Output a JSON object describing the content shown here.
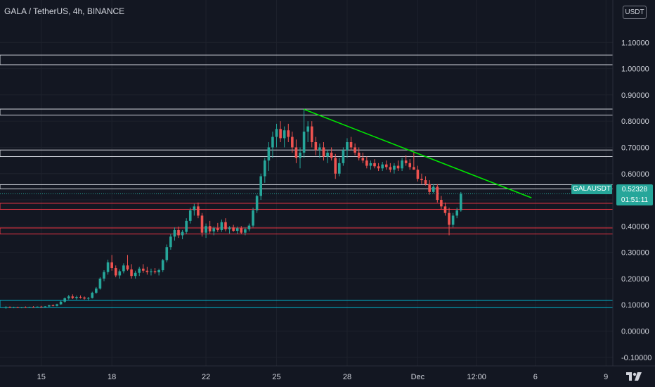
{
  "header": {
    "title": "GALA / TetherUS, 4h, BINANCE"
  },
  "axis_currency_button": "USDT",
  "last_price": {
    "symbol": "GALAUSDT",
    "price": "0.52328",
    "countdown": "01:51:11",
    "value": 0.52328
  },
  "colors": {
    "background": "#131722",
    "up": "#26a69a",
    "down": "#ef5350",
    "trendline": "#00e600",
    "white_zone": "#d1d4dc",
    "red_zone": "#f23645",
    "cyan_zone": "#00bcd4",
    "axis_text": "#d1d4dc"
  },
  "chart_data": {
    "type": "candlestick",
    "title": "GALA / TetherUS, 4h, BINANCE",
    "ylim": [
      -0.13,
      1.2
    ],
    "y_ticks": [
      "1.10000",
      "1.00000",
      "0.90000",
      "0.80000",
      "0.70000",
      "0.60000",
      "0.50000",
      "0.40000",
      "0.30000",
      "0.20000",
      "0.10000",
      "0.00000",
      "-0.10000"
    ],
    "y_tick_values": [
      1.1,
      1.0,
      0.9,
      0.8,
      0.7,
      0.6,
      0.5,
      0.4,
      0.3,
      0.2,
      0.1,
      0.0,
      -0.1
    ],
    "x_ticks": [
      "15",
      "18",
      "22",
      "25",
      "28",
      "Dec",
      "12:00",
      "6",
      "9"
    ],
    "x_tick_index": [
      9,
      27,
      51,
      69,
      87,
      105,
      120,
      135,
      153
    ],
    "horizontal_zones": [
      {
        "color": "white",
        "top": 1.052,
        "bottom": 1.015
      },
      {
        "color": "white",
        "top": 0.846,
        "bottom": 0.823
      },
      {
        "color": "white",
        "top": 0.69,
        "bottom": 0.665
      },
      {
        "color": "white",
        "top": 0.558,
        "bottom": 0.542
      },
      {
        "color": "red",
        "top": 0.487,
        "bottom": 0.464
      },
      {
        "color": "red",
        "top": 0.393,
        "bottom": 0.37
      },
      {
        "color": "cyan",
        "top": 0.117,
        "bottom": 0.09
      }
    ],
    "trendline": {
      "from": {
        "index": 76,
        "price": 0.845
      },
      "to": {
        "index": 134,
        "price": 0.508
      }
    },
    "candles": [
      [
        0.09,
        0.095,
        0.085,
        0.092
      ],
      [
        0.092,
        0.094,
        0.088,
        0.089
      ],
      [
        0.089,
        0.093,
        0.087,
        0.091
      ],
      [
        0.091,
        0.093,
        0.088,
        0.09
      ],
      [
        0.09,
        0.092,
        0.087,
        0.091
      ],
      [
        0.091,
        0.094,
        0.089,
        0.09
      ],
      [
        0.09,
        0.093,
        0.088,
        0.092
      ],
      [
        0.092,
        0.095,
        0.09,
        0.091
      ],
      [
        0.091,
        0.094,
        0.089,
        0.093
      ],
      [
        0.093,
        0.096,
        0.09,
        0.092
      ],
      [
        0.092,
        0.095,
        0.089,
        0.094
      ],
      [
        0.094,
        0.1,
        0.092,
        0.098
      ],
      [
        0.098,
        0.102,
        0.094,
        0.096
      ],
      [
        0.096,
        0.104,
        0.094,
        0.102
      ],
      [
        0.102,
        0.115,
        0.1,
        0.112
      ],
      [
        0.112,
        0.128,
        0.108,
        0.125
      ],
      [
        0.125,
        0.138,
        0.12,
        0.132
      ],
      [
        0.132,
        0.14,
        0.122,
        0.126
      ],
      [
        0.126,
        0.135,
        0.12,
        0.13
      ],
      [
        0.13,
        0.136,
        0.124,
        0.128
      ],
      [
        0.128,
        0.132,
        0.12,
        0.124
      ],
      [
        0.124,
        0.13,
        0.118,
        0.126
      ],
      [
        0.126,
        0.15,
        0.124,
        0.146
      ],
      [
        0.146,
        0.168,
        0.142,
        0.162
      ],
      [
        0.162,
        0.205,
        0.158,
        0.2
      ],
      [
        0.2,
        0.232,
        0.19,
        0.225
      ],
      [
        0.225,
        0.272,
        0.215,
        0.262
      ],
      [
        0.262,
        0.29,
        0.23,
        0.24
      ],
      [
        0.24,
        0.25,
        0.205,
        0.212
      ],
      [
        0.212,
        0.235,
        0.2,
        0.228
      ],
      [
        0.228,
        0.258,
        0.22,
        0.25
      ],
      [
        0.25,
        0.29,
        0.23,
        0.235
      ],
      [
        0.235,
        0.255,
        0.2,
        0.21
      ],
      [
        0.21,
        0.23,
        0.2,
        0.222
      ],
      [
        0.222,
        0.245,
        0.21,
        0.238
      ],
      [
        0.238,
        0.255,
        0.222,
        0.23
      ],
      [
        0.23,
        0.245,
        0.215,
        0.225
      ],
      [
        0.225,
        0.238,
        0.212,
        0.228
      ],
      [
        0.228,
        0.24,
        0.218,
        0.224
      ],
      [
        0.224,
        0.238,
        0.212,
        0.232
      ],
      [
        0.232,
        0.275,
        0.225,
        0.27
      ],
      [
        0.27,
        0.33,
        0.262,
        0.32
      ],
      [
        0.32,
        0.37,
        0.31,
        0.36
      ],
      [
        0.36,
        0.395,
        0.345,
        0.385
      ],
      [
        0.385,
        0.398,
        0.355,
        0.365
      ],
      [
        0.365,
        0.385,
        0.35,
        0.378
      ],
      [
        0.378,
        0.43,
        0.37,
        0.42
      ],
      [
        0.42,
        0.47,
        0.41,
        0.46
      ],
      [
        0.46,
        0.485,
        0.44,
        0.475
      ],
      [
        0.475,
        0.49,
        0.43,
        0.44
      ],
      [
        0.44,
        0.45,
        0.36,
        0.375
      ],
      [
        0.375,
        0.41,
        0.355,
        0.4
      ],
      [
        0.4,
        0.42,
        0.372,
        0.38
      ],
      [
        0.38,
        0.398,
        0.365,
        0.392
      ],
      [
        0.392,
        0.412,
        0.378,
        0.385
      ],
      [
        0.385,
        0.425,
        0.378,
        0.415
      ],
      [
        0.415,
        0.43,
        0.38,
        0.388
      ],
      [
        0.388,
        0.4,
        0.372,
        0.395
      ],
      [
        0.395,
        0.405,
        0.378,
        0.382
      ],
      [
        0.382,
        0.398,
        0.37,
        0.392
      ],
      [
        0.392,
        0.4,
        0.37,
        0.375
      ],
      [
        0.375,
        0.395,
        0.365,
        0.388
      ],
      [
        0.388,
        0.41,
        0.38,
        0.402
      ],
      [
        0.402,
        0.47,
        0.395,
        0.46
      ],
      [
        0.46,
        0.52,
        0.45,
        0.515
      ],
      [
        0.515,
        0.6,
        0.5,
        0.59
      ],
      [
        0.59,
        0.66,
        0.565,
        0.65
      ],
      [
        0.65,
        0.72,
        0.61,
        0.7
      ],
      [
        0.7,
        0.76,
        0.66,
        0.74
      ],
      [
        0.74,
        0.79,
        0.7,
        0.77
      ],
      [
        0.77,
        0.8,
        0.72,
        0.735
      ],
      [
        0.735,
        0.78,
        0.7,
        0.765
      ],
      [
        0.765,
        0.79,
        0.72,
        0.74
      ],
      [
        0.74,
        0.76,
        0.68,
        0.7
      ],
      [
        0.7,
        0.73,
        0.64,
        0.66
      ],
      [
        0.66,
        0.7,
        0.62,
        0.68
      ],
      [
        0.68,
        0.845,
        0.66,
        0.76
      ],
      [
        0.76,
        0.8,
        0.72,
        0.78
      ],
      [
        0.78,
        0.8,
        0.7,
        0.72
      ],
      [
        0.72,
        0.74,
        0.67,
        0.69
      ],
      [
        0.69,
        0.715,
        0.66,
        0.7
      ],
      [
        0.7,
        0.72,
        0.65,
        0.665
      ],
      [
        0.665,
        0.69,
        0.64,
        0.68
      ],
      [
        0.68,
        0.7,
        0.65,
        0.66
      ],
      [
        0.66,
        0.675,
        0.58,
        0.6
      ],
      [
        0.6,
        0.66,
        0.59,
        0.64
      ],
      [
        0.64,
        0.7,
        0.63,
        0.69
      ],
      [
        0.69,
        0.735,
        0.66,
        0.72
      ],
      [
        0.72,
        0.74,
        0.69,
        0.7
      ],
      [
        0.7,
        0.715,
        0.67,
        0.68
      ],
      [
        0.68,
        0.7,
        0.65,
        0.66
      ],
      [
        0.66,
        0.68,
        0.64,
        0.65
      ],
      [
        0.65,
        0.665,
        0.62,
        0.63
      ],
      [
        0.63,
        0.65,
        0.615,
        0.64
      ],
      [
        0.64,
        0.655,
        0.62,
        0.628
      ],
      [
        0.628,
        0.64,
        0.61,
        0.62
      ],
      [
        0.62,
        0.645,
        0.61,
        0.635
      ],
      [
        0.635,
        0.65,
        0.615,
        0.625
      ],
      [
        0.625,
        0.64,
        0.605,
        0.615
      ],
      [
        0.615,
        0.64,
        0.6,
        0.63
      ],
      [
        0.63,
        0.65,
        0.61,
        0.62
      ],
      [
        0.62,
        0.66,
        0.61,
        0.65
      ],
      [
        0.65,
        0.67,
        0.63,
        0.64
      ],
      [
        0.64,
        0.655,
        0.615,
        0.625
      ],
      [
        0.625,
        0.68,
        0.615,
        0.615
      ],
      [
        0.615,
        0.63,
        0.57,
        0.58
      ],
      [
        0.58,
        0.6,
        0.56,
        0.575
      ],
      [
        0.575,
        0.59,
        0.555,
        0.56
      ],
      [
        0.56,
        0.575,
        0.52,
        0.53
      ],
      [
        0.53,
        0.56,
        0.525,
        0.55
      ],
      [
        0.55,
        0.56,
        0.49,
        0.5
      ],
      [
        0.5,
        0.515,
        0.465,
        0.475
      ],
      [
        0.475,
        0.49,
        0.44,
        0.45
      ],
      [
        0.45,
        0.47,
        0.365,
        0.405
      ],
      [
        0.405,
        0.45,
        0.395,
        0.44
      ],
      [
        0.44,
        0.47,
        0.43,
        0.46
      ],
      [
        0.46,
        0.53,
        0.455,
        0.523
      ]
    ]
  }
}
